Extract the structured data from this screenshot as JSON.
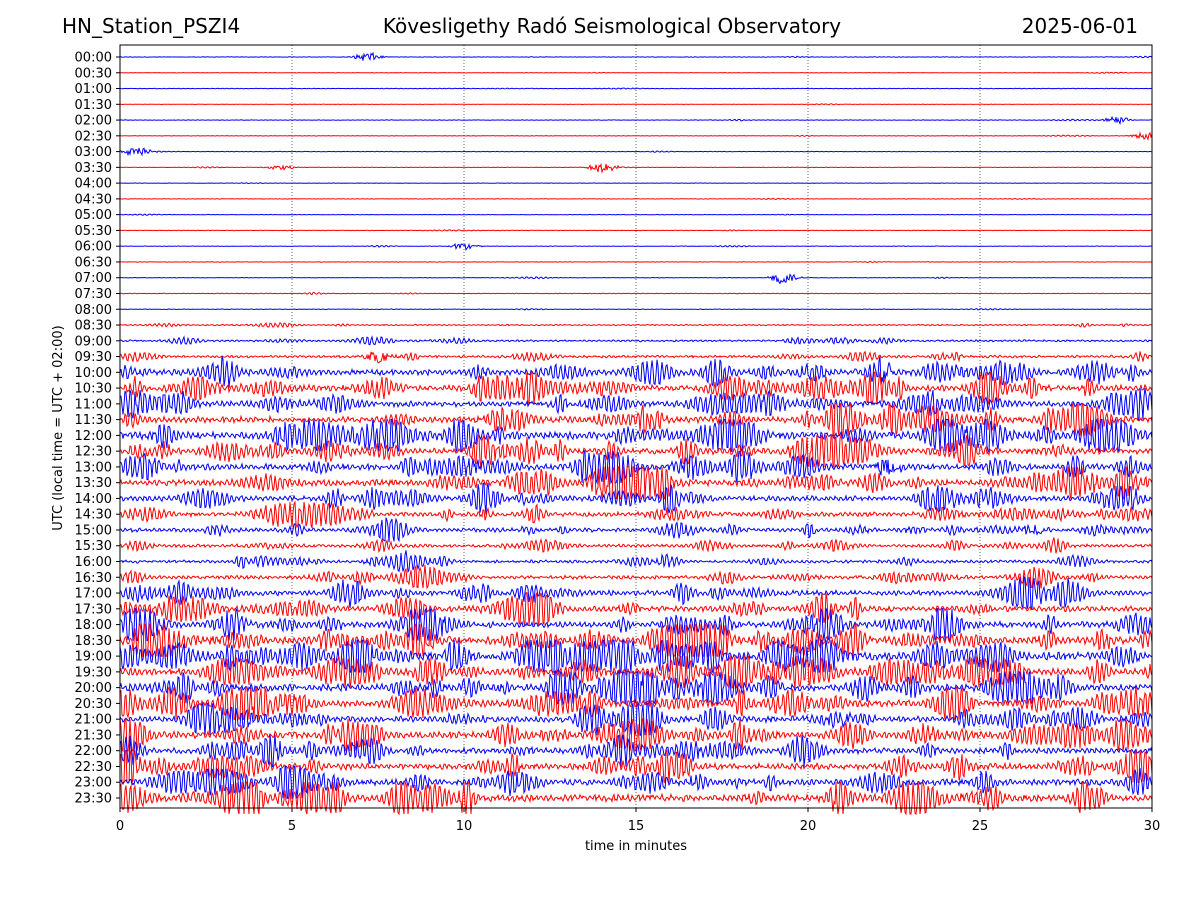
{
  "chart_data": {
    "type": "line",
    "title_left": "HN_Station_PSZI4",
    "title": "Kövesligethy Radó Seismological Observatory",
    "title_right": "2025-06-01",
    "xlabel": "time in minutes",
    "ylabel": "UTC (local time = UTC + 02:00)",
    "xlim": [
      0,
      30
    ],
    "x_ticks": [
      "0",
      "5",
      "10",
      "15",
      "20",
      "25",
      "30"
    ],
    "grid": "vertical dotted at 5-minute ticks",
    "row_labels": [
      "00:00",
      "00:30",
      "01:00",
      "01:30",
      "02:00",
      "02:30",
      "03:00",
      "03:30",
      "04:00",
      "04:30",
      "05:00",
      "05:30",
      "06:00",
      "06:30",
      "07:00",
      "07:30",
      "08:00",
      "08:30",
      "09:00",
      "09:30",
      "10:00",
      "10:30",
      "11:00",
      "11:30",
      "12:00",
      "12:30",
      "13:00",
      "13:30",
      "14:00",
      "14:30",
      "15:00",
      "15:30",
      "16:00",
      "16:30",
      "17:00",
      "17:30",
      "18:00",
      "18:30",
      "19:00",
      "19:30",
      "20:00",
      "20:30",
      "21:00",
      "21:30",
      "22:00",
      "22:30",
      "23:00",
      "23:30"
    ],
    "series_colors": [
      "#0000ff",
      "#ff0000"
    ],
    "relative_noise_level": [
      0.04,
      0.04,
      0.05,
      0.03,
      0.05,
      0.05,
      0.05,
      0.04,
      0.03,
      0.04,
      0.04,
      0.04,
      0.04,
      0.03,
      0.05,
      0.05,
      0.06,
      0.12,
      0.18,
      0.25,
      0.55,
      0.6,
      0.55,
      0.6,
      0.7,
      0.6,
      0.6,
      0.6,
      0.5,
      0.45,
      0.4,
      0.3,
      0.3,
      0.35,
      0.5,
      0.55,
      0.6,
      0.7,
      0.75,
      0.7,
      0.7,
      0.65,
      0.6,
      0.65,
      0.55,
      0.6,
      0.6,
      0.7
    ],
    "events": [
      {
        "row": "00:00",
        "minute": 7.2,
        "strength": 0.5
      },
      {
        "row": "02:00",
        "minute": 29.0,
        "strength": 0.4
      },
      {
        "row": "02:30",
        "minute": 29.8,
        "strength": 0.4
      },
      {
        "row": "03:00",
        "minute": 0.5,
        "strength": 0.5
      },
      {
        "row": "03:30",
        "minute": 14.0,
        "strength": 0.6
      },
      {
        "row": "03:30",
        "minute": 4.7,
        "strength": 0.3
      },
      {
        "row": "06:00",
        "minute": 10.0,
        "strength": 0.4
      },
      {
        "row": "07:00",
        "minute": 19.3,
        "strength": 0.7
      },
      {
        "row": "09:30",
        "minute": 7.5,
        "strength": 0.7
      },
      {
        "row": "10:00",
        "minute": 22.2,
        "strength": 0.8
      },
      {
        "row": "12:00",
        "minute": 7.5,
        "strength": 1.2
      },
      {
        "row": "13:00",
        "minute": 22.3,
        "strength": 1.2
      },
      {
        "row": "15:00",
        "minute": 26.5,
        "strength": 0.7
      },
      {
        "row": "18:30",
        "minute": 17.0,
        "strength": 0.6
      },
      {
        "row": "21:00",
        "minute": 21.0,
        "strength": 0.7
      }
    ]
  }
}
